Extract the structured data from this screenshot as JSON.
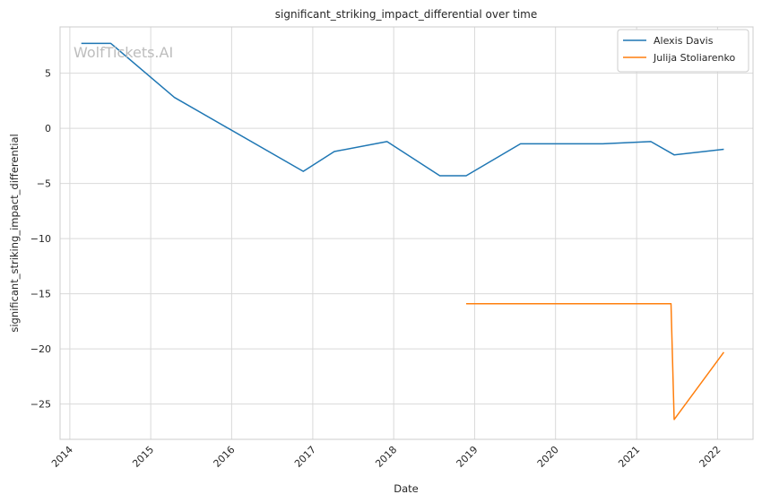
{
  "chart_data": {
    "type": "line",
    "title": "significant_striking_impact_differential over time",
    "xlabel": "Date",
    "ylabel": "significant_striking_impact_differential",
    "watermark": "WolfTickets.AI",
    "xlim": [
      "2013-11-18",
      "2022-06-10"
    ],
    "ylim": [
      -28.2,
      9.2
    ],
    "x_ticks": [
      "2014-01-01",
      "2015-01-01",
      "2016-01-01",
      "2017-01-01",
      "2018-01-01",
      "2019-01-01",
      "2020-01-01",
      "2021-01-01",
      "2022-01-01"
    ],
    "x_tick_labels": [
      "2014",
      "2015",
      "2016",
      "2017",
      "2018",
      "2019",
      "2020",
      "2021",
      "2022"
    ],
    "y_ticks": [
      5,
      0,
      -5,
      -10,
      -15,
      -20,
      -25
    ],
    "y_tick_labels": [
      "5",
      "0",
      "−5",
      "−10",
      "−15",
      "−20",
      "−25"
    ],
    "grid": true,
    "legend_position": "top-right",
    "series": [
      {
        "name": "Alexis Davis",
        "color": "#1f77b4",
        "points": [
          [
            "2014-02-22",
            7.7
          ],
          [
            "2014-07-05",
            7.7
          ],
          [
            "2015-04-18",
            2.8
          ],
          [
            "2016-11-19",
            -3.9
          ],
          [
            "2017-04-08",
            -2.1
          ],
          [
            "2017-12-02",
            -1.2
          ],
          [
            "2018-07-28",
            -4.3
          ],
          [
            "2018-11-24",
            -4.3
          ],
          [
            "2019-07-27",
            -1.4
          ],
          [
            "2020-08-01",
            -1.4
          ],
          [
            "2021-03-06",
            -1.2
          ],
          [
            "2021-06-19",
            -2.4
          ],
          [
            "2022-01-29",
            -1.9
          ]
        ]
      },
      {
        "name": "Julija Stoliarenko",
        "color": "#ff7f0e",
        "points": [
          [
            "2018-11-24",
            -15.9
          ],
          [
            "2021-06-05",
            -15.9
          ],
          [
            "2021-06-19",
            -26.4
          ],
          [
            "2022-01-29",
            -20.3
          ]
        ]
      }
    ]
  }
}
